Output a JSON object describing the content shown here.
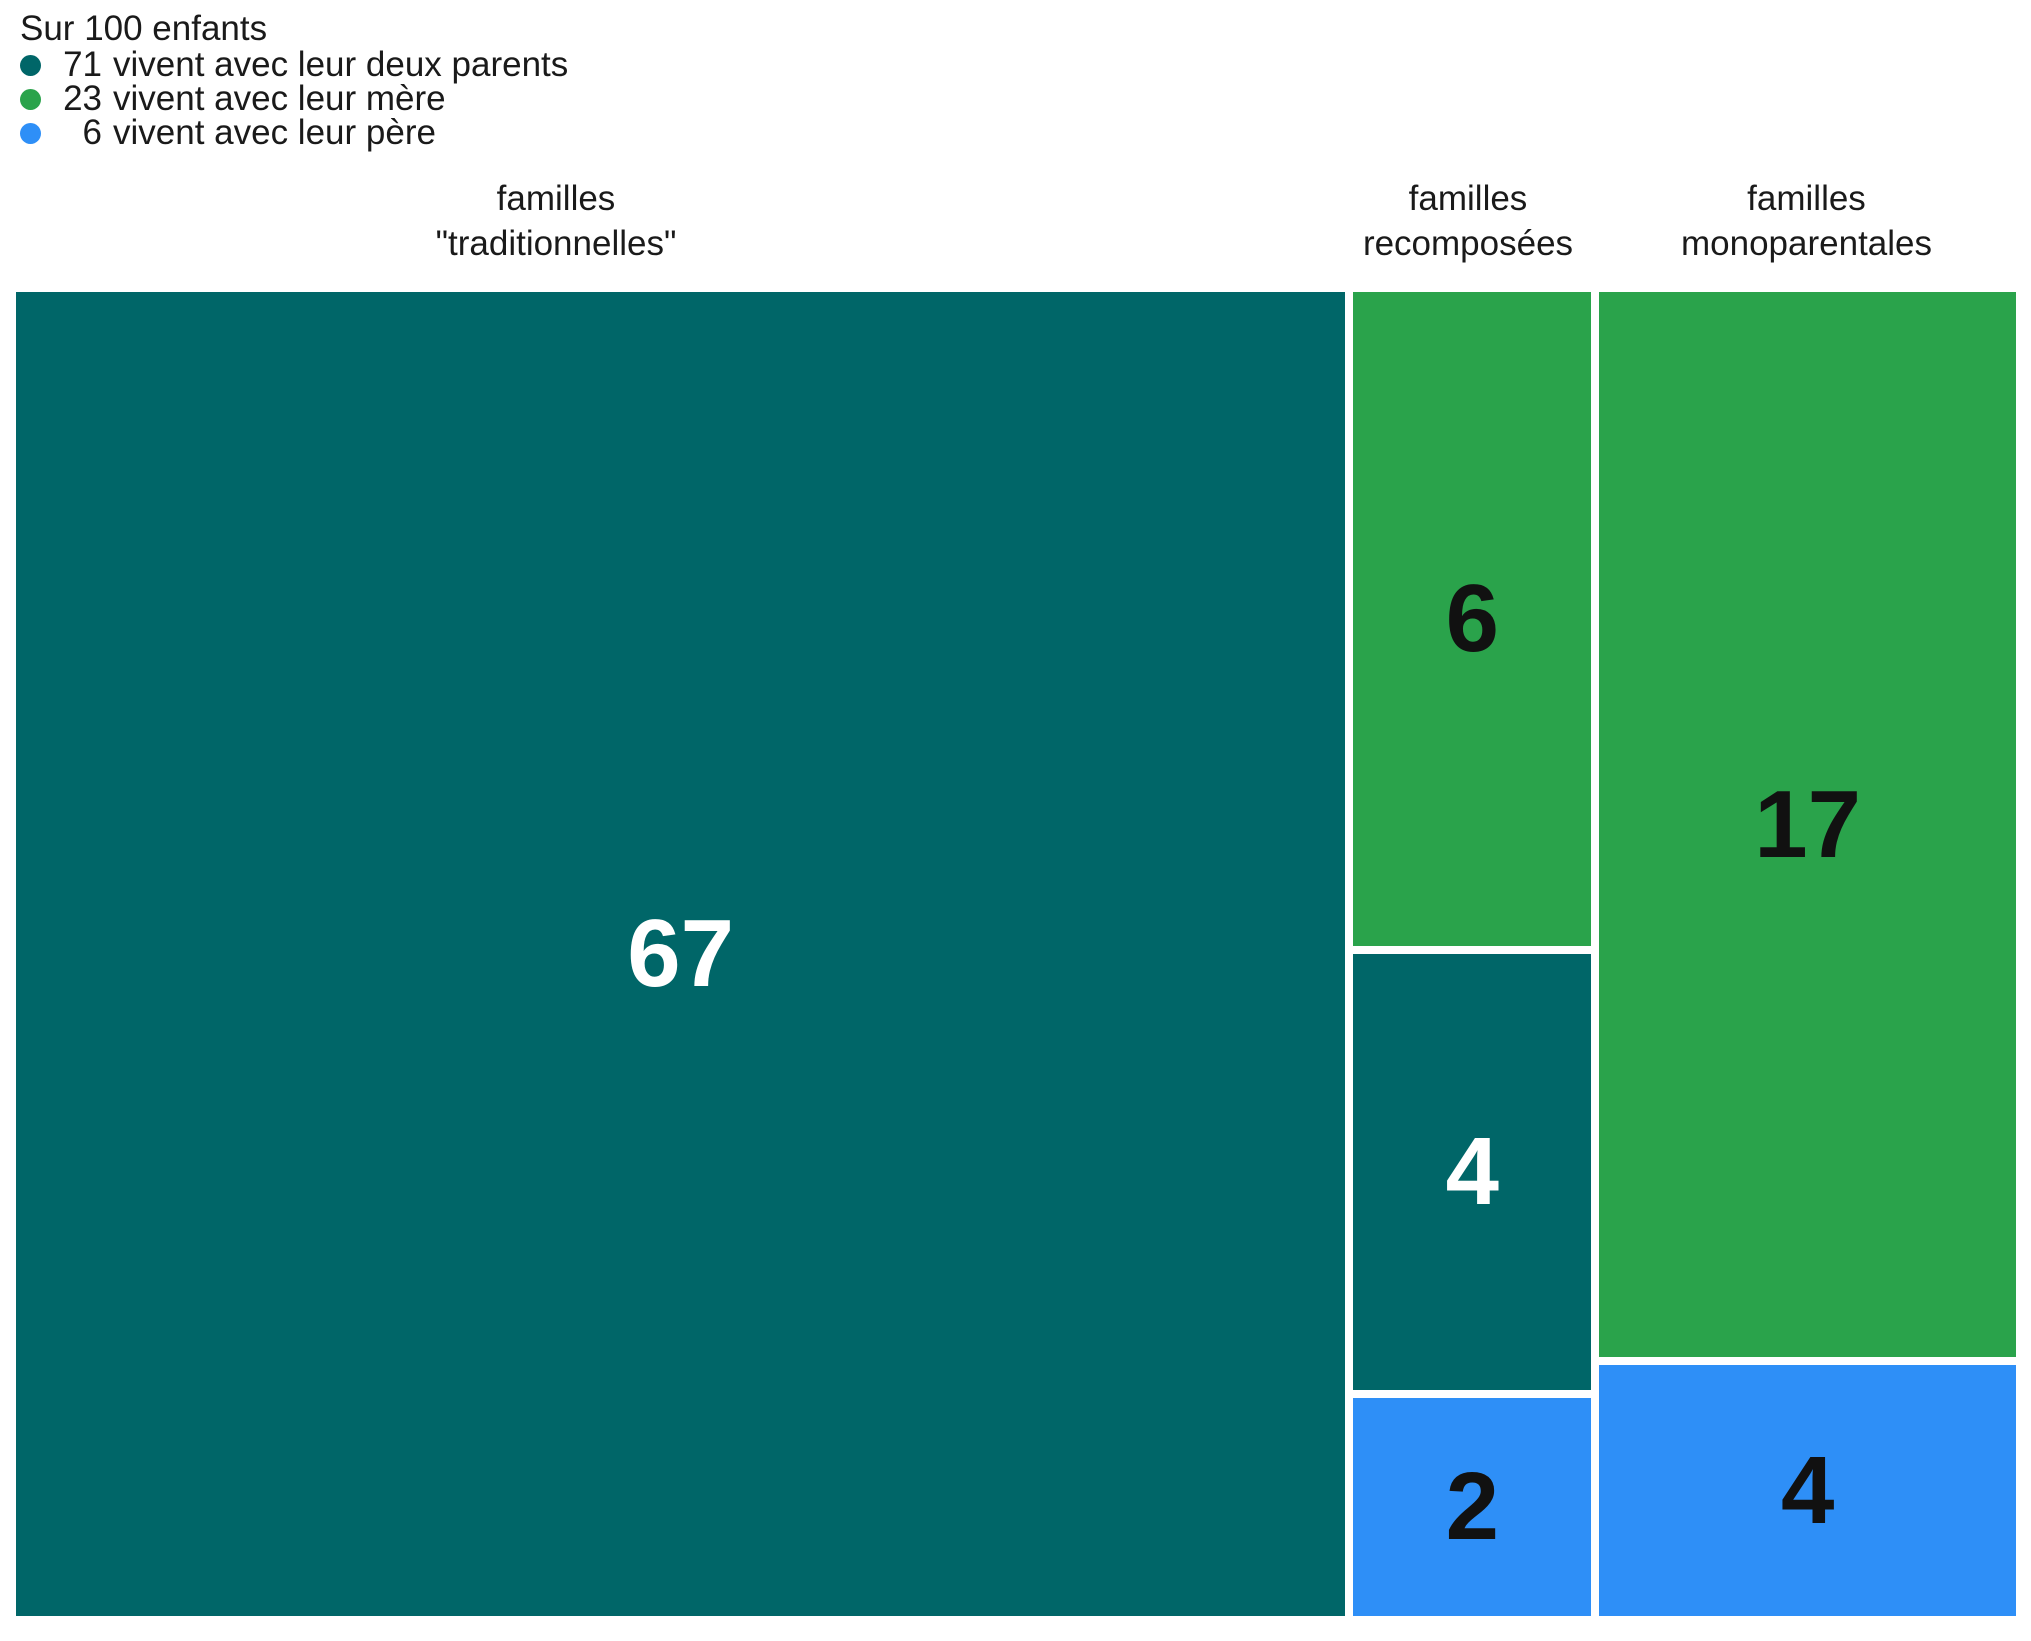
{
  "chart_data": {
    "type": "mosaic",
    "title": "Sur 100 enfants",
    "legend": [
      {
        "value": "71",
        "label": "vivent avec leur deux parents",
        "color": "#006668"
      },
      {
        "value": "23",
        "label": "vivent avec leur mère",
        "color": "#2aa34b"
      },
      {
        "value": "6",
        "label": "vivent avec leur père",
        "color": "#2e8ff7"
      }
    ],
    "columns": [
      {
        "header_line1": "familles",
        "header_line2": "\"traditionnelles\"",
        "total": 67,
        "blocks": [
          {
            "value": 67,
            "series": "vivent avec leur deux parents",
            "color": "#006668",
            "text_color": "#ffffff"
          }
        ]
      },
      {
        "header_line1": "familles",
        "header_line2": "recomposées",
        "total": 12,
        "blocks": [
          {
            "value": 6,
            "series": "vivent avec leur mère",
            "color": "#2aa34b",
            "text_color": "#111111"
          },
          {
            "value": 4,
            "series": "vivent avec leur deux parents",
            "color": "#006668",
            "text_color": "#ffffff"
          },
          {
            "value": 2,
            "series": "vivent avec leur père",
            "color": "#2e8ff7",
            "text_color": "#111111"
          }
        ]
      },
      {
        "header_line1": "familles",
        "header_line2": "monoparentales",
        "total": 21,
        "blocks": [
          {
            "value": 17,
            "series": "vivent avec leur mère",
            "color": "#2aa34b",
            "text_color": "#111111"
          },
          {
            "value": 4,
            "series": "vivent avec leur père",
            "color": "#2e8ff7",
            "text_color": "#111111"
          }
        ]
      }
    ],
    "layout": {
      "legend_position": "top-left",
      "grid": false,
      "axis": "none"
    }
  }
}
